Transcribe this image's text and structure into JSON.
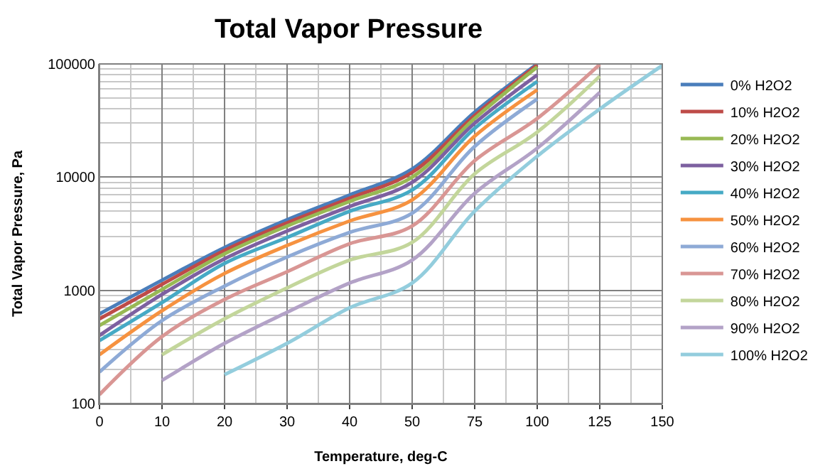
{
  "chart_data": {
    "type": "line",
    "title": "Total Vapor Pressure",
    "xlabel": "Temperature, deg-C",
    "ylabel": "Total Vapor Pressure, Pa",
    "categories": [
      "0",
      "10",
      "20",
      "30",
      "40",
      "50",
      "75",
      "100",
      "125",
      "150"
    ],
    "log": true,
    "ylim": [
      100,
      100000
    ],
    "yticks": [
      100,
      1000,
      10000,
      100000
    ],
    "grid": true,
    "legend": "right",
    "marker": "none",
    "line_style": "solid",
    "series": [
      {
        "name": "0% H2O2",
        "color": "#4a7ebb",
        "values": [
          620,
          1230,
          2390,
          4200,
          6950,
          11800,
          37500,
          100000,
          null,
          null
        ]
      },
      {
        "name": "10% H2O2",
        "color": "#be4b48",
        "values": [
          560,
          1130,
          2250,
          3940,
          6500,
          11000,
          35000,
          98000,
          null,
          null
        ]
      },
      {
        "name": "20% H2O2",
        "color": "#98b954",
        "values": [
          490,
          1020,
          2100,
          3700,
          6100,
          10000,
          33000,
          94000,
          null,
          null
        ]
      },
      {
        "name": "30% H2O2",
        "color": "#7d60a0",
        "values": [
          400,
          920,
          1900,
          3340,
          5500,
          9000,
          30000,
          80000,
          null,
          null
        ]
      },
      {
        "name": "40% H2O2",
        "color": "#46aac5",
        "values": [
          360,
          780,
          1730,
          2930,
          5000,
          7700,
          27000,
          70000,
          null,
          null
        ]
      },
      {
        "name": "50% H2O2",
        "color": "#f69240",
        "values": [
          270,
          660,
          1410,
          2490,
          4100,
          6300,
          23000,
          59000,
          null,
          null
        ]
      },
      {
        "name": "60% H2O2",
        "color": "#8eaad6",
        "values": [
          190,
          540,
          1090,
          1970,
          3250,
          4800,
          18700,
          49000,
          null,
          null
        ]
      },
      {
        "name": "70% H2O2",
        "color": "#d99694",
        "values": [
          120,
          390,
          830,
          1460,
          2580,
          3700,
          14000,
          33000,
          99000,
          null
        ]
      },
      {
        "name": "80% H2O2",
        "color": "#c3d69b",
        "values": [
          null,
          270,
          560,
          1050,
          1850,
          2650,
          10700,
          25000,
          78000,
          null
        ]
      },
      {
        "name": "90% H2O2",
        "color": "#b3a2c7",
        "values": [
          null,
          160,
          340,
          640,
          1160,
          1850,
          7200,
          18000,
          56000,
          null
        ]
      },
      {
        "name": "100% H2O2",
        "color": "#93cddd",
        "values": [
          null,
          null,
          180,
          340,
          700,
          1160,
          5000,
          15300,
          40000,
          97000
        ]
      }
    ]
  }
}
